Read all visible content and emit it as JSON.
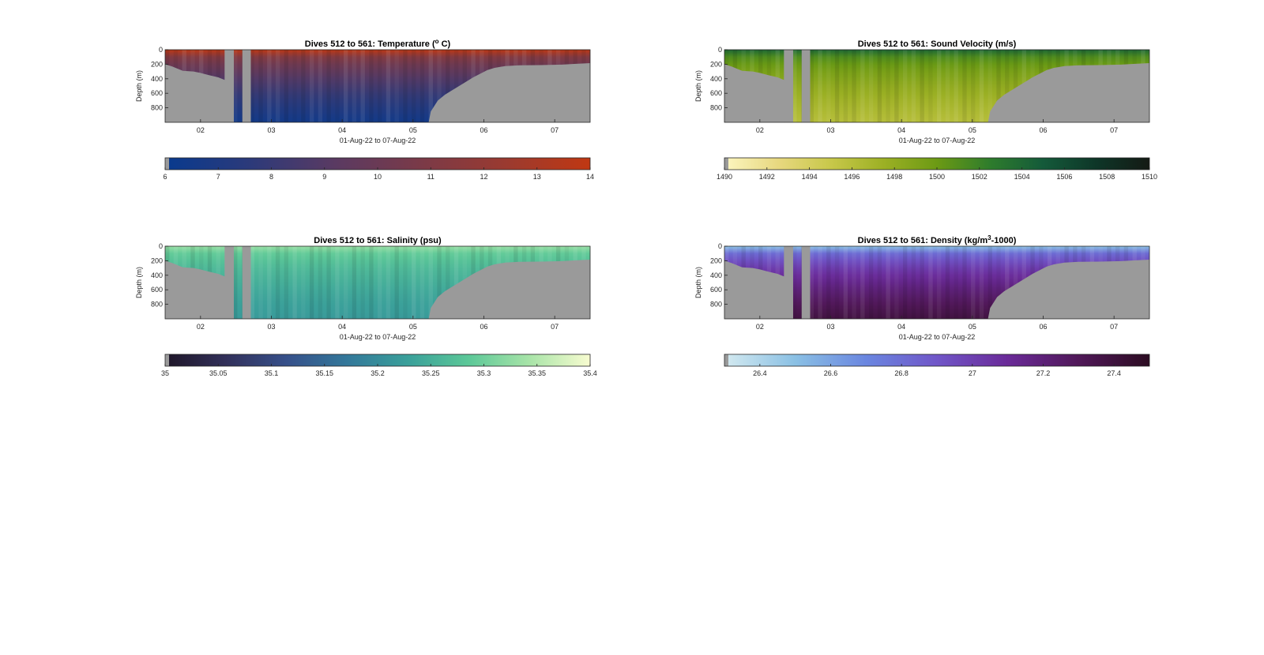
{
  "chart_data": [
    {
      "type": "heatmap",
      "variable": "temperature",
      "title": "Dives 512 to 561: Temperature (",
      "title_sup": "o",
      "title_end": " C)",
      "ylabel": "Depth (m)",
      "xlabel": "01-Aug-22 to 07-Aug-22",
      "x_ticks": [
        "02",
        "03",
        "04",
        "05",
        "06",
        "07"
      ],
      "y_ticks": [
        "0",
        "200",
        "400",
        "600",
        "800"
      ],
      "x_range_days": [
        1.5,
        7.5
      ],
      "y_range_m": [
        0,
        1000
      ],
      "colorbar_ticks": [
        "6",
        "7",
        "8",
        "9",
        "10",
        "11",
        "12",
        "13",
        "14"
      ],
      "colorbar_range": [
        6,
        14
      ],
      "colormap": [
        "#083a8e",
        "#2c3a7a",
        "#5a3a62",
        "#7a3a48",
        "#9a3a30",
        "#c03812"
      ],
      "surface_value": 13.8,
      "deep_value": 6.5
    },
    {
      "type": "heatmap",
      "variable": "sound-velocity",
      "title": "Dives 512 to 561: Sound Velocity (m/s)",
      "ylabel": "Depth (m)",
      "xlabel": "01-Aug-22 to 07-Aug-22",
      "x_ticks": [
        "02",
        "03",
        "04",
        "05",
        "06",
        "07"
      ],
      "y_ticks": [
        "0",
        "200",
        "400",
        "600",
        "800"
      ],
      "x_range_days": [
        1.5,
        7.5
      ],
      "y_range_m": [
        0,
        1000
      ],
      "colorbar_ticks": [
        "1490",
        "1492",
        "1494",
        "1496",
        "1498",
        "1500",
        "1502",
        "1504",
        "1506",
        "1508",
        "1510"
      ],
      "colorbar_range": [
        1490,
        1510
      ],
      "colormap": [
        "#fcf6c0",
        "#e8d880",
        "#c8c84a",
        "#9cb024",
        "#6c9a14",
        "#2e7c2c",
        "#145a3a",
        "#0e3628",
        "#141a14"
      ],
      "surface_value": 1504,
      "deep_value": 1496
    },
    {
      "type": "heatmap",
      "variable": "salinity",
      "title": "Dives 512 to 561: Salinity (psu)",
      "ylabel": "Depth (m)",
      "xlabel": "01-Aug-22 to 07-Aug-22",
      "x_ticks": [
        "02",
        "03",
        "04",
        "05",
        "06",
        "07"
      ],
      "y_ticks": [
        "0",
        "200",
        "400",
        "600",
        "800"
      ],
      "x_range_days": [
        1.5,
        7.5
      ],
      "y_range_m": [
        0,
        1000
      ],
      "colorbar_ticks": [
        "35",
        "35.05",
        "35.1",
        "35.15",
        "35.2",
        "35.25",
        "35.3",
        "35.35",
        "35.4"
      ],
      "colorbar_range": [
        35,
        35.4
      ],
      "colormap": [
        "#1e1628",
        "#32305a",
        "#36508a",
        "#33789a",
        "#3aa09a",
        "#5cc898",
        "#a8e4a8",
        "#f8fcd0"
      ],
      "surface_value": 35.33,
      "deep_value": 35.22
    },
    {
      "type": "heatmap",
      "variable": "density",
      "title": "Dives 512 to 561: Density (kg/m",
      "title_sup": "3",
      "title_end": "-1000)",
      "ylabel": "Depth (m)",
      "xlabel": "01-Aug-22 to 07-Aug-22",
      "x_ticks": [
        "02",
        "03",
        "04",
        "05",
        "06",
        "07"
      ],
      "y_ticks": [
        "0",
        "200",
        "400",
        "600",
        "800"
      ],
      "x_range_days": [
        1.5,
        7.5
      ],
      "y_range_m": [
        0,
        1000
      ],
      "colorbar_ticks": [
        "26.4",
        "26.6",
        "26.8",
        "27",
        "27.2",
        "27.4"
      ],
      "colorbar_range": [
        26.3,
        27.5
      ],
      "colormap": [
        "#d4eaf0",
        "#8ac0e4",
        "#6a86e0",
        "#7056c8",
        "#6a2a98",
        "#501858",
        "#2c0c22"
      ],
      "surface_value": 26.5,
      "deep_value": 27.38
    }
  ],
  "colors": {
    "no_data": "#9a9a9a",
    "axis": "#262626"
  }
}
